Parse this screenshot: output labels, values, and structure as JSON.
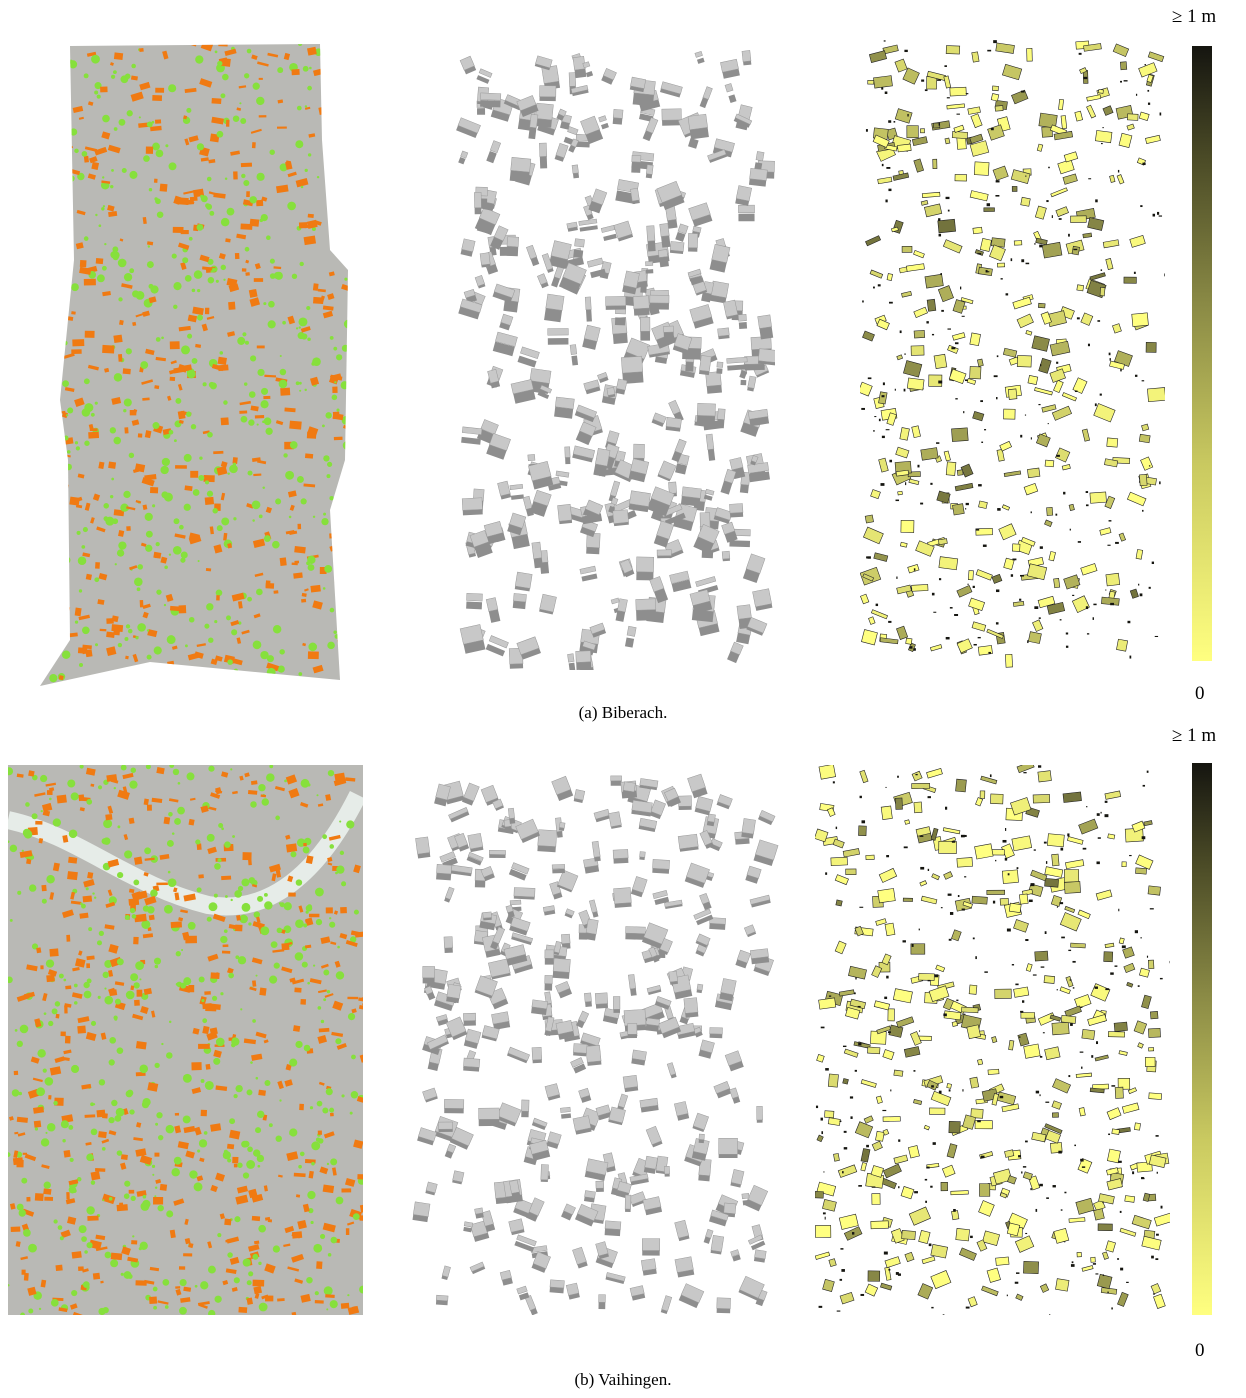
{
  "figure": {
    "rows": [
      {
        "id": "biberach",
        "caption": "(a) Biberach.",
        "colorbar": {
          "max_label": "≥ 1 m",
          "min_label": "0"
        }
      },
      {
        "id": "vaihingen",
        "caption": "(b) Vaihingen.",
        "colorbar": {
          "max_label": "≥ 1 m",
          "min_label": "0"
        }
      }
    ],
    "colors": {
      "ground": "#b9b9b5",
      "vegetation": "#86e03c",
      "building_points": "#f07a12",
      "model_gray": "#c8c8c8",
      "model_dark": "#8e8e8e",
      "error_low": "#ffff80",
      "error_high": "#151510"
    }
  }
}
